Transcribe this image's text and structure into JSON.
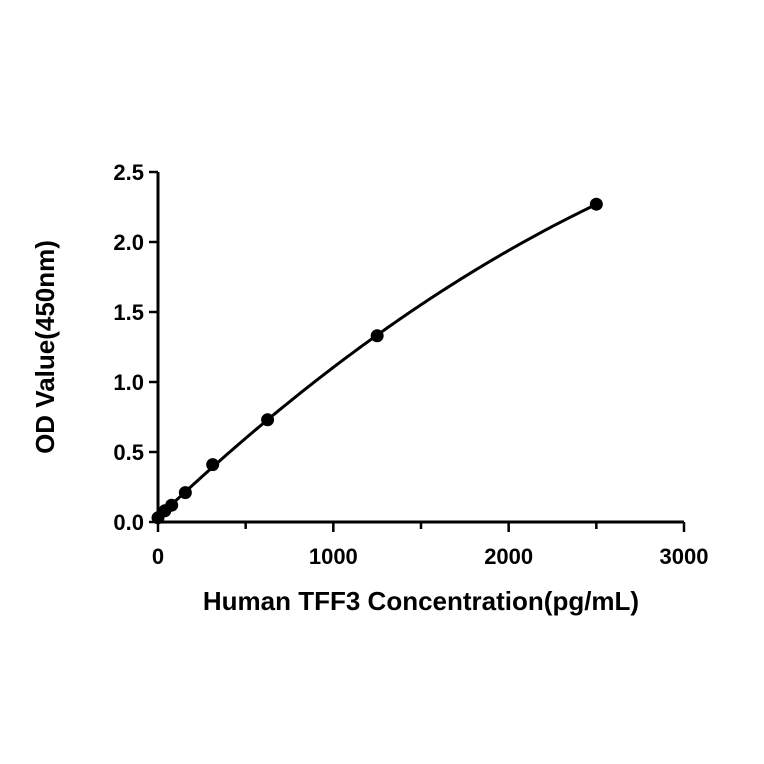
{
  "chart_data": {
    "type": "scatter",
    "title": "",
    "xlabel": "Human TFF3 Concentration(pg/mL)",
    "ylabel": "OD Value(450nm)",
    "xlim": [
      0,
      3000
    ],
    "ylim": [
      0,
      2.5
    ],
    "x_ticks": [
      0,
      1000,
      2000,
      3000
    ],
    "x_tick_labels": [
      "0",
      "1000",
      "2000",
      "3000"
    ],
    "x_minor_ticks": [
      500,
      1500,
      2500
    ],
    "y_ticks": [
      0,
      0.5,
      1.0,
      1.5,
      2.0,
      2.5
    ],
    "y_tick_labels": [
      "0.0",
      "0.5",
      "1.0",
      "1.5",
      "2.0",
      "2.5"
    ],
    "grid": false,
    "legend": "none",
    "series": [
      {
        "x": [
          0,
          39,
          78,
          156,
          312,
          625,
          1250,
          2500
        ],
        "y": [
          0.03,
          0.08,
          0.12,
          0.21,
          0.41,
          0.73,
          1.33,
          2.27
        ]
      }
    ],
    "fit_curve": true,
    "colors": {
      "marker": "#000000",
      "line": "#000000"
    }
  }
}
